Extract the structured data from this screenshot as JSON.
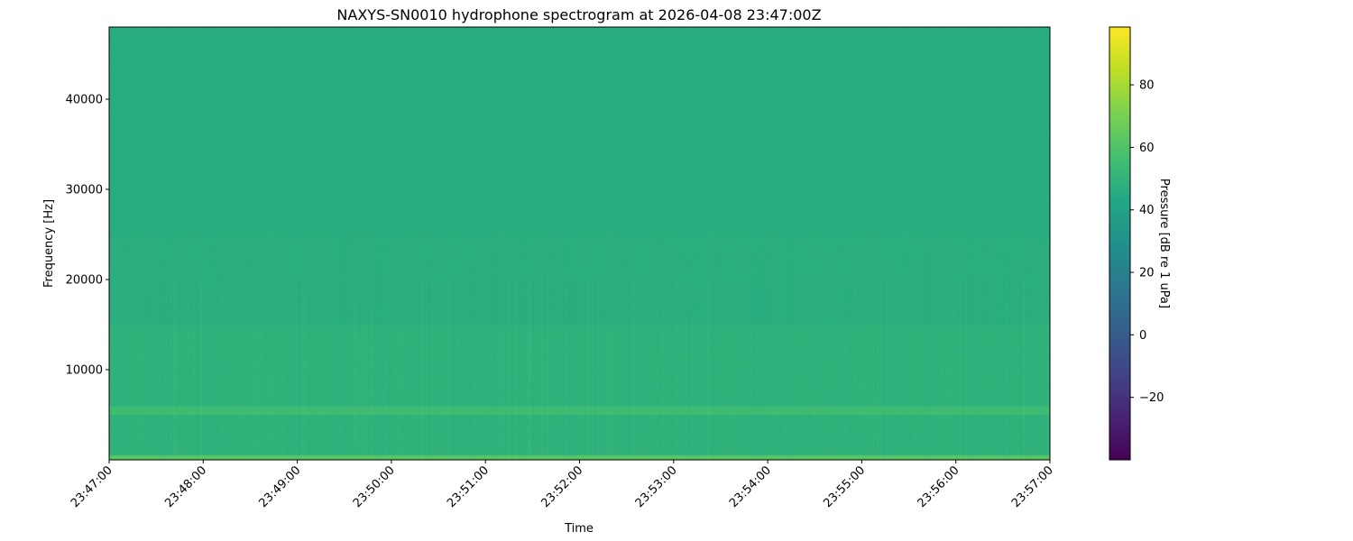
{
  "chart_data": {
    "type": "heatmap",
    "title": "NAXYS-SN0010 hydrophone spectrogram at 2026-04-08 23:47:00Z",
    "xlabel": "Time",
    "ylabel": "Frequency [Hz]",
    "x_ticks": [
      "23:47:00",
      "23:48:00",
      "23:49:00",
      "23:50:00",
      "23:51:00",
      "23:52:00",
      "23:53:00",
      "23:54:00",
      "23:55:00",
      "23:56:00",
      "23:57:00"
    ],
    "xlim": [
      "23:47:00",
      "23:57:00"
    ],
    "y_ticks": [
      10000,
      20000,
      30000,
      40000
    ],
    "ylim": [
      0,
      48000
    ],
    "colormap": "viridis",
    "colorbar": {
      "label": "Pressure [dB re 1 uPa]",
      "ticks": [
        -20,
        0,
        20,
        40,
        60,
        80
      ],
      "tick_labels": [
        "−20",
        "0",
        "20",
        "40",
        "60",
        "80"
      ],
      "range": [
        -40,
        98.5
      ]
    },
    "approx_levels_db": [
      {
        "freq_range_hz": [
          0,
          500
        ],
        "level": 62
      },
      {
        "freq_range_hz": [
          500,
          5000
        ],
        "level": 49
      },
      {
        "freq_range_hz": [
          5000,
          6000
        ],
        "level": 55
      },
      {
        "freq_range_hz": [
          6000,
          15000
        ],
        "level": 49
      },
      {
        "freq_range_hz": [
          15000,
          25000
        ],
        "level": 47
      },
      {
        "freq_range_hz": [
          25000,
          48000
        ],
        "level": 46
      }
    ],
    "grid": false
  }
}
